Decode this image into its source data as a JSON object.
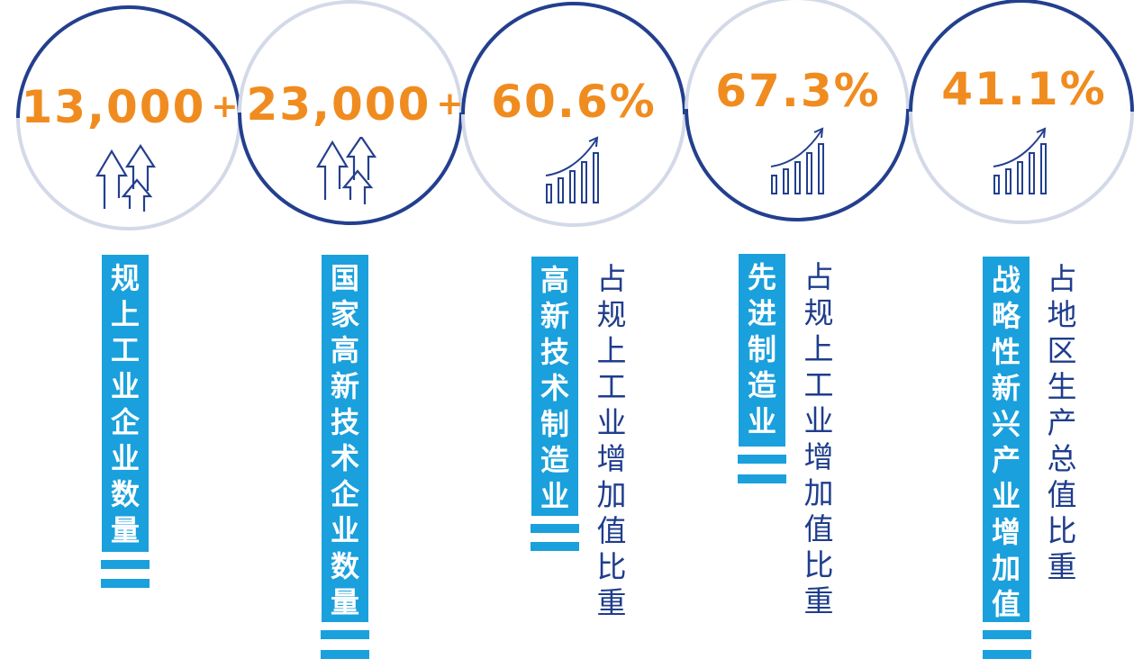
{
  "colors": {
    "accent_orange": "#f08c1f",
    "ring_dark": "#233f8e",
    "ring_light": "#d3d9e8",
    "tag_blue": "#1aa0dc",
    "text_navy": "#1f3d8c"
  },
  "stats": [
    {
      "value": "13,000",
      "suffix": "+",
      "icon": "up-arrows-icon",
      "label": "规上工业企业数量",
      "description": ""
    },
    {
      "value": "23,000",
      "suffix": "+",
      "icon": "up-arrows-icon",
      "label": "国家高新技术企业数量",
      "description": ""
    },
    {
      "value": "60.6%",
      "suffix": "",
      "icon": "growth-bars-icon",
      "label": "高新技术制造业",
      "description": "占规上工业增加值比重"
    },
    {
      "value": "67.3%",
      "suffix": "",
      "icon": "growth-bars-icon",
      "label": "先进制造业",
      "description": "占规上工业增加值比重"
    },
    {
      "value": "41.1%",
      "suffix": "",
      "icon": "growth-bars-icon",
      "label": "战略性新兴产业增加值",
      "description": "占地区生产总值比重"
    }
  ]
}
